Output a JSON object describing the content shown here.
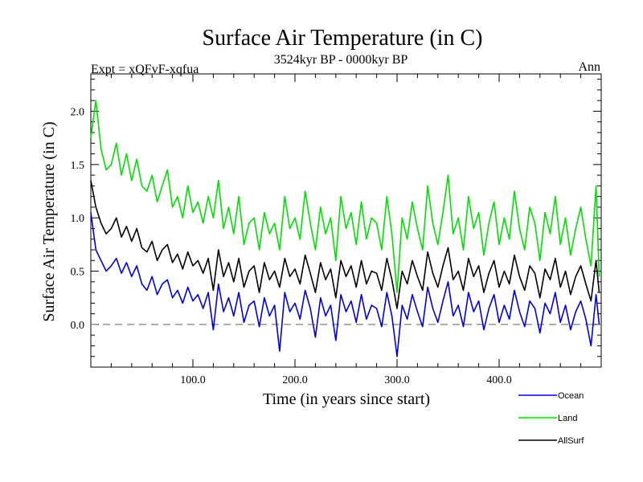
{
  "chart_data": {
    "type": "line",
    "title": "Surface Air Temperature (in C)",
    "subtitle": "3524kyr BP - 0000kyr BP",
    "expt_label": "Expt = xQFvF-xqfua",
    "period_label": "Ann",
    "xlabel": "Time (in years since start)",
    "ylabel": "Surface Air Temperature (in C)",
    "xlim": [
      0,
      500
    ],
    "ylim": [
      -0.4,
      2.35
    ],
    "x_ticks": [
      {
        "value": 100,
        "label": "100.0"
      },
      {
        "value": 200,
        "label": "200.0"
      },
      {
        "value": 300,
        "label": "300.0"
      },
      {
        "value": 400,
        "label": "400.0"
      }
    ],
    "y_ticks": [
      {
        "value": 0.0,
        "label": "0.0"
      },
      {
        "value": 0.5,
        "label": "0.5"
      },
      {
        "value": 1.0,
        "label": "1.0"
      },
      {
        "value": 1.5,
        "label": "1.5"
      },
      {
        "value": 2.0,
        "label": "2.0"
      }
    ],
    "reference_line": {
      "y": 0.0,
      "style": "dashed",
      "color": "#7f7f7f"
    },
    "legend_position": "bottom-right",
    "series": [
      {
        "name": "Land",
        "color": "#00e000",
        "x": [
          0,
          5,
          10,
          15,
          20,
          25,
          30,
          35,
          40,
          45,
          50,
          55,
          60,
          65,
          70,
          75,
          80,
          85,
          90,
          95,
          100,
          105,
          110,
          115,
          120,
          125,
          130,
          135,
          140,
          145,
          150,
          155,
          160,
          165,
          170,
          175,
          180,
          185,
          190,
          195,
          200,
          205,
          210,
          215,
          220,
          225,
          230,
          235,
          240,
          245,
          250,
          255,
          260,
          265,
          270,
          275,
          280,
          285,
          290,
          295,
          300,
          305,
          310,
          315,
          320,
          325,
          330,
          335,
          340,
          345,
          350,
          355,
          360,
          365,
          370,
          375,
          380,
          385,
          390,
          395,
          400,
          405,
          410,
          415,
          420,
          425,
          430,
          435,
          440,
          445,
          450,
          455,
          460,
          465,
          470,
          475,
          480,
          485,
          490,
          495,
          498
        ],
        "values": [
          1.75,
          2.1,
          1.65,
          1.45,
          1.5,
          1.7,
          1.4,
          1.6,
          1.35,
          1.55,
          1.3,
          1.25,
          1.4,
          1.15,
          1.3,
          1.45,
          1.1,
          1.2,
          1.0,
          1.3,
          1.05,
          1.15,
          0.95,
          1.2,
          1.0,
          1.35,
          0.9,
          1.1,
          0.85,
          1.2,
          0.75,
          0.95,
          1.0,
          0.7,
          1.05,
          0.85,
          0.95,
          0.7,
          1.2,
          0.9,
          1.0,
          0.8,
          1.25,
          0.95,
          0.7,
          1.1,
          0.85,
          1.0,
          0.6,
          1.2,
          0.9,
          1.05,
          0.75,
          1.15,
          0.8,
          1.0,
          0.95,
          0.7,
          1.2,
          0.85,
          0.3,
          1.0,
          0.8,
          1.15,
          0.9,
          0.7,
          1.3,
          0.95,
          0.75,
          1.05,
          1.4,
          0.85,
          1.0,
          0.7,
          1.2,
          0.9,
          1.05,
          0.65,
          0.95,
          1.15,
          0.75,
          1.0,
          0.8,
          1.25,
          0.9,
          0.7,
          1.1,
          0.95,
          0.6,
          1.05,
          0.85,
          1.2,
          0.75,
          1.0,
          0.65,
          0.9,
          1.1,
          0.8,
          0.55,
          1.3,
          0.45
        ]
      },
      {
        "name": "AllSurf",
        "color": "#000000",
        "x": [
          0,
          5,
          10,
          15,
          20,
          25,
          30,
          35,
          40,
          45,
          50,
          55,
          60,
          65,
          70,
          75,
          80,
          85,
          90,
          95,
          100,
          105,
          110,
          115,
          120,
          125,
          130,
          135,
          140,
          145,
          150,
          155,
          160,
          165,
          170,
          175,
          180,
          185,
          190,
          195,
          200,
          205,
          210,
          215,
          220,
          225,
          230,
          235,
          240,
          245,
          250,
          255,
          260,
          265,
          270,
          275,
          280,
          285,
          290,
          295,
          300,
          305,
          310,
          315,
          320,
          325,
          330,
          335,
          340,
          345,
          350,
          355,
          360,
          365,
          370,
          375,
          380,
          385,
          390,
          395,
          400,
          405,
          410,
          415,
          420,
          425,
          430,
          435,
          440,
          445,
          450,
          455,
          460,
          465,
          470,
          475,
          480,
          485,
          490,
          495,
          498
        ],
        "values": [
          1.35,
          1.1,
          0.95,
          0.85,
          0.9,
          1.0,
          0.82,
          0.92,
          0.78,
          0.9,
          0.72,
          0.68,
          0.78,
          0.6,
          0.7,
          0.75,
          0.58,
          0.66,
          0.52,
          0.68,
          0.55,
          0.6,
          0.48,
          0.62,
          0.32,
          0.7,
          0.45,
          0.58,
          0.4,
          0.62,
          0.35,
          0.5,
          0.55,
          0.3,
          0.58,
          0.42,
          0.5,
          0.35,
          0.62,
          0.45,
          0.52,
          0.38,
          0.65,
          0.48,
          0.3,
          0.58,
          0.42,
          0.52,
          0.25,
          0.6,
          0.45,
          0.55,
          0.35,
          0.6,
          0.38,
          0.5,
          0.48,
          0.32,
          0.62,
          0.42,
          0.15,
          0.5,
          0.38,
          0.6,
          0.45,
          0.32,
          0.68,
          0.48,
          0.35,
          0.55,
          0.72,
          0.42,
          0.5,
          0.32,
          0.62,
          0.45,
          0.55,
          0.3,
          0.48,
          0.6,
          0.35,
          0.5,
          0.38,
          0.65,
          0.45,
          0.32,
          0.55,
          0.48,
          0.25,
          0.52,
          0.42,
          0.62,
          0.35,
          0.5,
          0.28,
          0.45,
          0.55,
          0.38,
          0.22,
          0.6,
          0.3
        ]
      },
      {
        "name": "Ocean",
        "color": "#0000e0",
        "x": [
          0,
          5,
          10,
          15,
          20,
          25,
          30,
          35,
          40,
          45,
          50,
          55,
          60,
          65,
          70,
          75,
          80,
          85,
          90,
          95,
          100,
          105,
          110,
          115,
          120,
          125,
          130,
          135,
          140,
          145,
          150,
          155,
          160,
          165,
          170,
          175,
          180,
          185,
          190,
          195,
          200,
          205,
          210,
          215,
          220,
          225,
          230,
          235,
          240,
          245,
          250,
          255,
          260,
          265,
          270,
          275,
          280,
          285,
          290,
          295,
          300,
          305,
          310,
          315,
          320,
          325,
          330,
          335,
          340,
          345,
          350,
          355,
          360,
          365,
          370,
          375,
          380,
          385,
          390,
          395,
          400,
          405,
          410,
          415,
          420,
          425,
          430,
          435,
          440,
          445,
          450,
          455,
          460,
          465,
          470,
          475,
          480,
          485,
          490,
          495,
          498
        ],
        "values": [
          1.05,
          0.7,
          0.6,
          0.5,
          0.55,
          0.62,
          0.48,
          0.58,
          0.45,
          0.55,
          0.38,
          0.32,
          0.45,
          0.28,
          0.38,
          0.42,
          0.25,
          0.32,
          0.2,
          0.35,
          0.22,
          0.28,
          0.15,
          0.3,
          -0.05,
          0.38,
          0.12,
          0.25,
          0.08,
          0.3,
          0.02,
          0.18,
          0.22,
          -0.02,
          0.25,
          0.08,
          0.18,
          -0.25,
          0.3,
          0.12,
          0.2,
          0.05,
          0.32,
          0.15,
          -0.12,
          0.25,
          0.08,
          0.18,
          -0.15,
          0.28,
          0.12,
          0.22,
          0.02,
          0.28,
          0.05,
          0.18,
          0.15,
          -0.02,
          0.3,
          0.08,
          -0.3,
          0.18,
          0.05,
          0.28,
          0.12,
          -0.02,
          0.35,
          0.15,
          0.02,
          0.22,
          0.4,
          0.08,
          0.18,
          -0.02,
          0.3,
          0.12,
          0.22,
          -0.05,
          0.15,
          0.28,
          0.02,
          0.18,
          0.05,
          0.32,
          0.12,
          -0.02,
          0.22,
          0.15,
          -0.08,
          0.2,
          0.1,
          0.3,
          0.02,
          0.18,
          -0.05,
          0.12,
          0.22,
          0.05,
          -0.2,
          0.28,
          0.0
        ]
      }
    ],
    "legend_order": [
      "Ocean",
      "Land",
      "AllSurf"
    ]
  }
}
